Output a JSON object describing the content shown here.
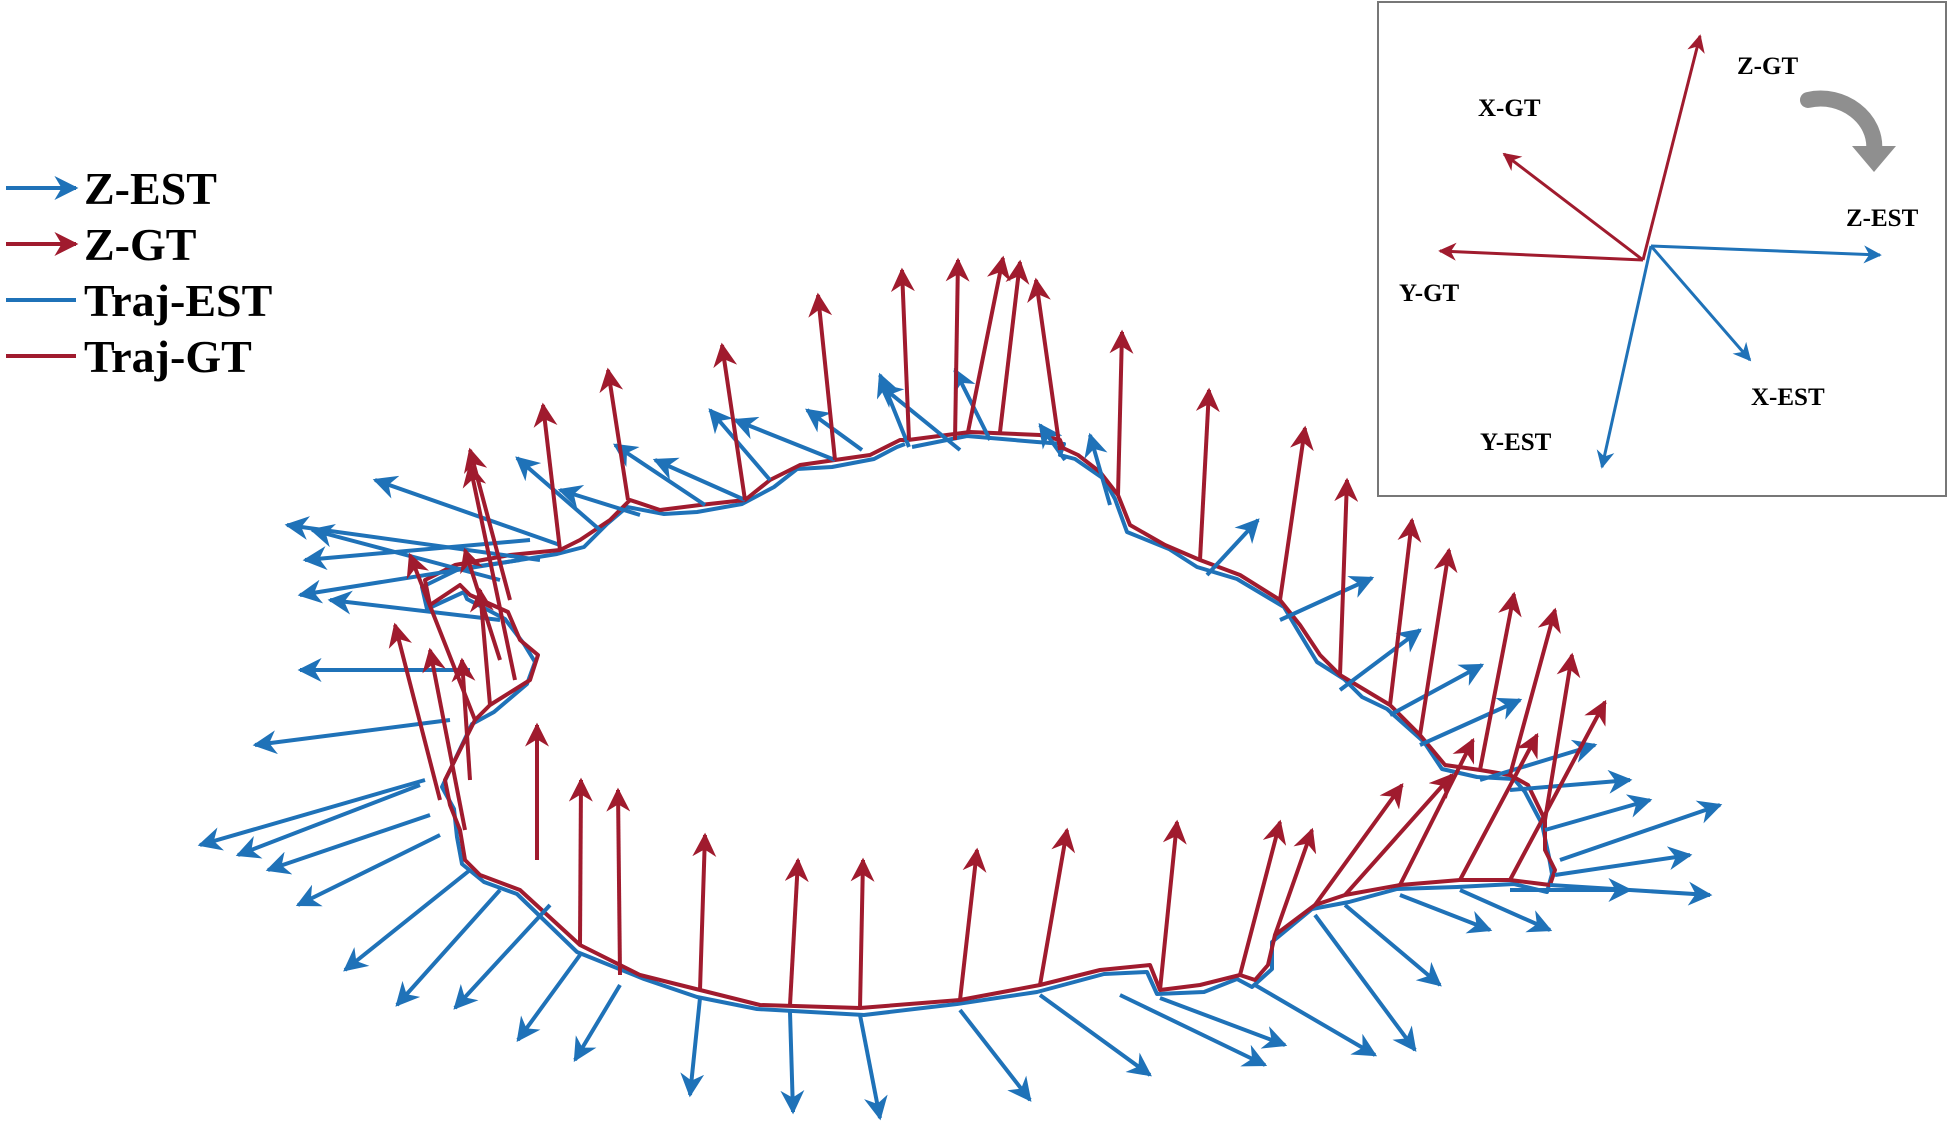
{
  "colors": {
    "est": "#1f72b8",
    "gt": "#a01b2e",
    "inset_border": "#777777",
    "rotation_arrow": "#8f8f8f"
  },
  "legend": [
    {
      "id": "z-est",
      "label": "Z-EST",
      "symbol": "arrow",
      "color": "#1f72b8"
    },
    {
      "id": "z-gt",
      "label": "Z-GT",
      "symbol": "arrow",
      "color": "#a01b2e"
    },
    {
      "id": "traj-est",
      "label": "Traj-EST",
      "symbol": "line",
      "color": "#1f72b8"
    },
    {
      "id": "traj-gt",
      "label": "Traj-GT",
      "symbol": "line",
      "color": "#a01b2e"
    }
  ],
  "inset": {
    "labels": {
      "z_gt": "Z-GT",
      "x_gt": "X-GT",
      "y_gt": "Y-GT",
      "z_est": "Z-EST",
      "x_est": "X-EST",
      "y_est": "Y-EST"
    },
    "rotation_icon": "curved-rotation-arrow-icon"
  }
}
